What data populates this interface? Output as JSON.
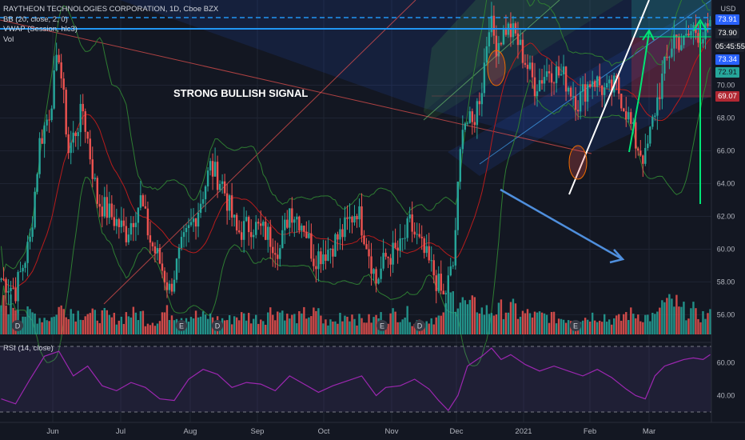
{
  "legend": {
    "symbol": "RAYTHEON TECHNOLOGIES CORPORATION, 1D, Cboe BZX",
    "bb": "BB (20, close, 2, 0)",
    "vwap": "VWAP (Session, hlc3)",
    "vol": "Vol"
  },
  "rsi_legend": "RSI (14, close)",
  "currency": "USD",
  "annotation_text": "STRONG BULLISH SIGNAL",
  "price_tags": [
    {
      "label": "73.91",
      "color": "#2962ff"
    },
    {
      "label": "73.90",
      "color": "#1e222d"
    },
    {
      "label": "05:45:55",
      "color": "#1e222d"
    },
    {
      "label": "73.34",
      "color": "#2962ff"
    },
    {
      "label": "72.91",
      "color": "#26a69a"
    },
    {
      "label": "69.07",
      "color": "#b22833"
    }
  ],
  "event_markers": [
    "D",
    "E",
    "D",
    "E",
    "D",
    "E"
  ],
  "chart_data": {
    "type": "candlestick",
    "x_ticks": [
      "Jun",
      "Jul",
      "Aug",
      "Sep",
      "Oct",
      "Nov",
      "Dec",
      "2021",
      "Feb",
      "Mar"
    ],
    "y_ticks": [
      "56.00",
      "58.00",
      "60.00",
      "62.00",
      "64.00",
      "66.00",
      "68.00",
      "70.00"
    ],
    "ylim": [
      54.8,
      75.2
    ],
    "close_path": [
      [
        0,
        58.2
      ],
      [
        6,
        57.5
      ],
      [
        12,
        60.5
      ],
      [
        16,
        66.5
      ],
      [
        20,
        68.4
      ],
      [
        24,
        72.0
      ],
      [
        28,
        66.0
      ],
      [
        34,
        68.5
      ],
      [
        40,
        63.0
      ],
      [
        46,
        62.0
      ],
      [
        52,
        61.0
      ],
      [
        58,
        63.0
      ],
      [
        62,
        60.5
      ],
      [
        66,
        59.2
      ],
      [
        70,
        57.5
      ],
      [
        75,
        60.0
      ],
      [
        82,
        62.5
      ],
      [
        87,
        65.0
      ],
      [
        92,
        64.0
      ],
      [
        98,
        61.0
      ],
      [
        104,
        61.5
      ],
      [
        110,
        61.0
      ],
      [
        116,
        60.0
      ],
      [
        120,
        62.5
      ],
      [
        126,
        61.5
      ],
      [
        130,
        59.5
      ],
      [
        136,
        60.0
      ],
      [
        142,
        61.0
      ],
      [
        148,
        62.5
      ],
      [
        152,
        60.5
      ],
      [
        156,
        58.0
      ],
      [
        160,
        59.5
      ],
      [
        166,
        60.0
      ],
      [
        170,
        61.5
      ],
      [
        175,
        60.0
      ],
      [
        180,
        58.5
      ],
      [
        184,
        57.0
      ],
      [
        188,
        59.0
      ],
      [
        192,
        68.0
      ],
      [
        196,
        67.5
      ],
      [
        200,
        70.0
      ],
      [
        203,
        74.0
      ],
      [
        206,
        72.5
      ],
      [
        210,
        73.5
      ],
      [
        214,
        73.0
      ],
      [
        218,
        71.5
      ],
      [
        222,
        70.0
      ],
      [
        228,
        71.0
      ],
      [
        234,
        70.5
      ],
      [
        240,
        69.0
      ],
      [
        246,
        70.5
      ],
      [
        252,
        69.5
      ],
      [
        256,
        70.0
      ],
      [
        260,
        68.5
      ],
      [
        264,
        66.5
      ],
      [
        268,
        65.5
      ],
      [
        272,
        68.5
      ],
      [
        276,
        71.0
      ],
      [
        280,
        73.0
      ],
      [
        284,
        72.5
      ],
      [
        288,
        73.5
      ],
      [
        292,
        73.0
      ],
      [
        295,
        73.3
      ]
    ],
    "volume": [
      0.45,
      0.3,
      0.25,
      0.38,
      0.32,
      0.28,
      0.24,
      0.3,
      0.2,
      0.32,
      0.28,
      0.26,
      0.22,
      0.27,
      0.24,
      0.34,
      0.25,
      0.3,
      0.18,
      0.29,
      0.22,
      0.26,
      0.3,
      0.2,
      0.24,
      0.55,
      0.42,
      0.35,
      0.38,
      0.3,
      0.27,
      0.24,
      0.25,
      0.28,
      0.22,
      0.3,
      0.26,
      0.45,
      0.35,
      0.28
    ],
    "rsi_range": [
      30,
      70
    ],
    "rsi_levels": [
      70,
      30
    ],
    "rsi_ticks": [
      "60.00",
      "40.00"
    ],
    "rsi": [
      [
        0,
        38
      ],
      [
        6,
        35
      ],
      [
        12,
        50
      ],
      [
        18,
        64
      ],
      [
        24,
        67
      ],
      [
        30,
        52
      ],
      [
        36,
        58
      ],
      [
        42,
        46
      ],
      [
        48,
        43
      ],
      [
        54,
        48
      ],
      [
        60,
        45
      ],
      [
        66,
        38
      ],
      [
        72,
        37
      ],
      [
        78,
        50
      ],
      [
        84,
        56
      ],
      [
        90,
        53
      ],
      [
        96,
        45
      ],
      [
        102,
        48
      ],
      [
        108,
        47
      ],
      [
        114,
        43
      ],
      [
        120,
        52
      ],
      [
        126,
        47
      ],
      [
        132,
        42
      ],
      [
        138,
        46
      ],
      [
        144,
        49
      ],
      [
        150,
        52
      ],
      [
        156,
        40
      ],
      [
        160,
        45
      ],
      [
        166,
        46
      ],
      [
        172,
        50
      ],
      [
        178,
        44
      ],
      [
        182,
        37
      ],
      [
        186,
        31
      ],
      [
        190,
        40
      ],
      [
        194,
        58
      ],
      [
        200,
        64
      ],
      [
        204,
        69
      ],
      [
        208,
        62
      ],
      [
        212,
        65
      ],
      [
        218,
        59
      ],
      [
        224,
        55
      ],
      [
        230,
        58
      ],
      [
        236,
        55
      ],
      [
        242,
        52
      ],
      [
        248,
        56
      ],
      [
        254,
        51
      ],
      [
        260,
        44
      ],
      [
        264,
        40
      ],
      [
        268,
        38
      ],
      [
        272,
        52
      ],
      [
        276,
        58
      ],
      [
        280,
        60
      ],
      [
        284,
        62
      ],
      [
        288,
        63
      ],
      [
        292,
        62
      ],
      [
        295,
        65
      ]
    ]
  },
  "colors": {
    "up": "#26a69a",
    "down": "#ef5350",
    "bb_band": "#2e7d32",
    "vwap": "#b71c1c",
    "rsi": "#9c27b0",
    "projection_arrow": "#4f8fdd",
    "target_arrow": "#00e676",
    "trend_line": "#ffffff",
    "resistance": "#2196f3"
  }
}
